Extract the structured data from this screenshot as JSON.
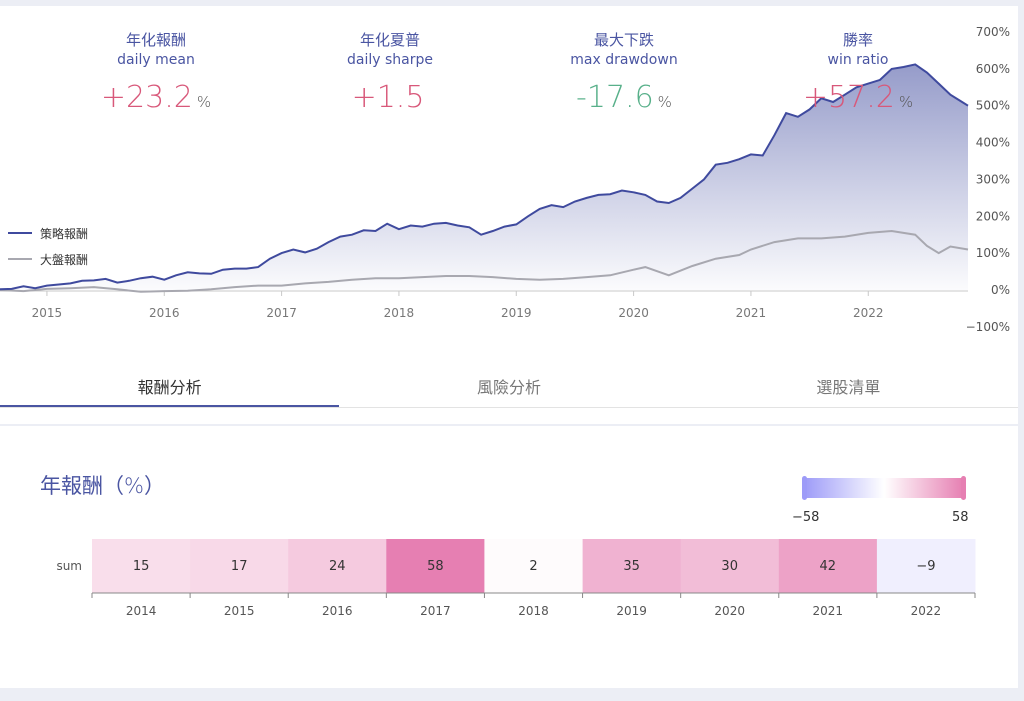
{
  "metrics": [
    {
      "zh": "年化報酬",
      "en": "daily mean",
      "value": "+23.2",
      "unit": "%",
      "tone": "pos"
    },
    {
      "zh": "年化夏普",
      "en": "daily sharpe",
      "value": "+1.5",
      "unit": "",
      "tone": "pos"
    },
    {
      "zh": "最大下跌",
      "en": "max drawdown",
      "value": "-17.6",
      "unit": "%",
      "tone": "neg"
    },
    {
      "zh": "勝率",
      "en": "win ratio",
      "value": "+57.2",
      "unit": "%",
      "tone": "pos"
    }
  ],
  "tabs": [
    {
      "label": "報酬分析",
      "active": true
    },
    {
      "label": "風險分析",
      "active": false
    },
    {
      "label": "選股清單",
      "active": false
    }
  ],
  "colors": {
    "strategy": "#3f4a9e",
    "benchmark": "#a8a8b0",
    "positive": "#d8587a",
    "negative": "#58b08a",
    "accent": "#4a55a2",
    "heat_low": "#9d9bf8",
    "heat_high": "#e67fb2"
  },
  "chart_data": [
    {
      "type": "area",
      "x_ticks": [
        "2015",
        "2016",
        "2017",
        "2018",
        "2019",
        "2020",
        "2021",
        "2022"
      ],
      "y_ticks": [
        "700%",
        "600%",
        "500%",
        "400%",
        "300%",
        "200%",
        "100%",
        "0%",
        "−100%"
      ],
      "ylim": [
        -100,
        700
      ],
      "xlim": [
        2014.6,
        2022.85
      ],
      "legend_position": "left",
      "series": [
        {
          "name": "策略報酬",
          "x": [
            2014.6,
            2014.7,
            2014.8,
            2014.9,
            2015.0,
            2015.1,
            2015.2,
            2015.3,
            2015.4,
            2015.5,
            2015.6,
            2015.7,
            2015.8,
            2015.9,
            2016.0,
            2016.1,
            2016.2,
            2016.3,
            2016.4,
            2016.5,
            2016.6,
            2016.7,
            2016.8,
            2016.9,
            2017.0,
            2017.1,
            2017.2,
            2017.3,
            2017.4,
            2017.5,
            2017.6,
            2017.7,
            2017.8,
            2017.9,
            2018.0,
            2018.1,
            2018.2,
            2018.3,
            2018.4,
            2018.5,
            2018.6,
            2018.7,
            2018.8,
            2018.9,
            2019.0,
            2019.1,
            2019.2,
            2019.3,
            2019.4,
            2019.5,
            2019.6,
            2019.7,
            2019.8,
            2019.9,
            2020.0,
            2020.1,
            2020.2,
            2020.3,
            2020.4,
            2020.5,
            2020.6,
            2020.7,
            2020.8,
            2020.9,
            2021.0,
            2021.1,
            2021.2,
            2021.3,
            2021.4,
            2021.5,
            2021.6,
            2021.7,
            2021.8,
            2021.9,
            2022.0,
            2022.1,
            2022.2,
            2022.3,
            2022.4,
            2022.5,
            2022.6,
            2022.7,
            2022.8,
            2022.85
          ],
          "values": [
            2,
            3,
            10,
            5,
            12,
            15,
            18,
            25,
            26,
            30,
            20,
            25,
            32,
            36,
            28,
            40,
            48,
            45,
            44,
            55,
            58,
            58,
            62,
            85,
            100,
            110,
            102,
            112,
            130,
            145,
            150,
            162,
            160,
            180,
            165,
            175,
            172,
            180,
            182,
            175,
            170,
            150,
            160,
            172,
            178,
            200,
            220,
            230,
            225,
            240,
            250,
            258,
            260,
            270,
            265,
            258,
            240,
            236,
            250,
            275,
            300,
            340,
            345,
            355,
            368,
            365,
            420,
            480,
            470,
            490,
            520,
            510,
            530,
            550,
            560,
            570,
            600,
            605,
            612,
            590,
            560,
            530,
            510,
            500
          ]
        },
        {
          "name": "大盤報酬",
          "x": [
            2014.6,
            2014.8,
            2015.0,
            2015.2,
            2015.4,
            2015.6,
            2015.8,
            2016.0,
            2016.2,
            2016.4,
            2016.6,
            2016.8,
            2017.0,
            2017.2,
            2017.4,
            2017.6,
            2017.8,
            2018.0,
            2018.2,
            2018.4,
            2018.6,
            2018.8,
            2019.0,
            2019.2,
            2019.4,
            2019.6,
            2019.8,
            2020.0,
            2020.1,
            2020.3,
            2020.5,
            2020.7,
            2020.9,
            2021.0,
            2021.2,
            2021.4,
            2021.6,
            2021.8,
            2022.0,
            2022.2,
            2022.4,
            2022.5,
            2022.6,
            2022.7,
            2022.85
          ],
          "values": [
            0,
            -3,
            3,
            5,
            8,
            2,
            -5,
            -3,
            -2,
            2,
            8,
            12,
            12,
            18,
            22,
            28,
            32,
            32,
            35,
            38,
            38,
            35,
            30,
            28,
            30,
            35,
            40,
            55,
            62,
            40,
            65,
            85,
            95,
            110,
            130,
            140,
            140,
            145,
            155,
            160,
            150,
            120,
            100,
            118,
            110
          ]
        }
      ]
    },
    {
      "type": "heatmap",
      "title": "年報酬（%）",
      "row_label": "sum",
      "categories": [
        "2014",
        "2015",
        "2016",
        "2017",
        "2018",
        "2019",
        "2020",
        "2021",
        "2022"
      ],
      "values": [
        15,
        17,
        24,
        58,
        2,
        35,
        30,
        42,
        -9
      ],
      "value_labels": [
        "15",
        "17",
        "24",
        "58",
        "2",
        "35",
        "30",
        "42",
        "−9"
      ],
      "scale_min": -58,
      "scale_max": 58,
      "scale_min_label": "−58",
      "scale_max_label": "58"
    }
  ]
}
